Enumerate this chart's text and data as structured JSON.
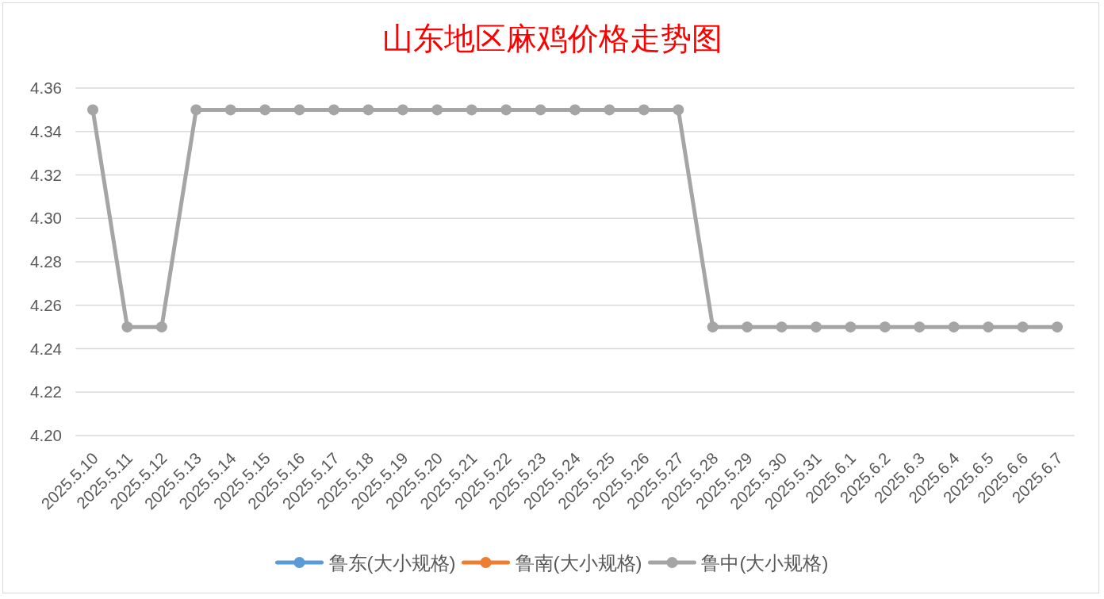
{
  "chart_data": {
    "type": "line",
    "title": "山东地区麻鸡价格走势图",
    "categories": [
      "2025.5.10",
      "2025.5.11",
      "2025.5.12",
      "2025.5.13",
      "2025.5.14",
      "2025.5.15",
      "2025.5.16",
      "2025.5.17",
      "2025.5.18",
      "2025.5.19",
      "2025.5.20",
      "2025.5.21",
      "2025.5.22",
      "2025.5.23",
      "2025.5.24",
      "2025.5.25",
      "2025.5.26",
      "2025.5.27",
      "2025.5.28",
      "2025.5.29",
      "2025.5.30",
      "2025.5.31",
      "2025.6.1",
      "2025.6.2",
      "2025.6.3",
      "2025.6.4",
      "2025.6.5",
      "2025.6.6",
      "2025.6.7"
    ],
    "series": [
      {
        "name": "鲁东(大小规格)",
        "color": "#5b9bd5",
        "values": [
          null,
          null,
          null,
          null,
          null,
          null,
          null,
          null,
          null,
          null,
          null,
          null,
          null,
          null,
          null,
          null,
          null,
          null,
          null,
          null,
          null,
          null,
          null,
          null,
          null,
          null,
          null,
          null,
          null
        ]
      },
      {
        "name": "鲁南(大小规格)",
        "color": "#ed7d31",
        "values": [
          null,
          null,
          null,
          null,
          null,
          null,
          null,
          null,
          null,
          null,
          null,
          null,
          null,
          null,
          null,
          null,
          null,
          null,
          null,
          null,
          null,
          null,
          null,
          null,
          null,
          null,
          null,
          null,
          null
        ]
      },
      {
        "name": "鲁中(大小规格)",
        "color": "#a5a5a5",
        "values": [
          4.35,
          4.25,
          4.25,
          4.35,
          4.35,
          4.35,
          4.35,
          4.35,
          4.35,
          4.35,
          4.35,
          4.35,
          4.35,
          4.35,
          4.35,
          4.35,
          4.35,
          4.35,
          4.25,
          4.25,
          4.25,
          4.25,
          4.25,
          4.25,
          4.25,
          4.25,
          4.25,
          4.25,
          4.25
        ]
      }
    ],
    "ylim": [
      4.2,
      4.36
    ],
    "yticks": [
      {
        "value": 4.2,
        "label": "4.20"
      },
      4.22,
      4.24,
      4.26,
      4.28,
      {
        "value": 4.3,
        "label": "4.30"
      },
      4.32,
      4.34,
      4.36
    ],
    "grid": "y",
    "legend": "bottom",
    "marker": "circle",
    "line_style": "solid"
  }
}
